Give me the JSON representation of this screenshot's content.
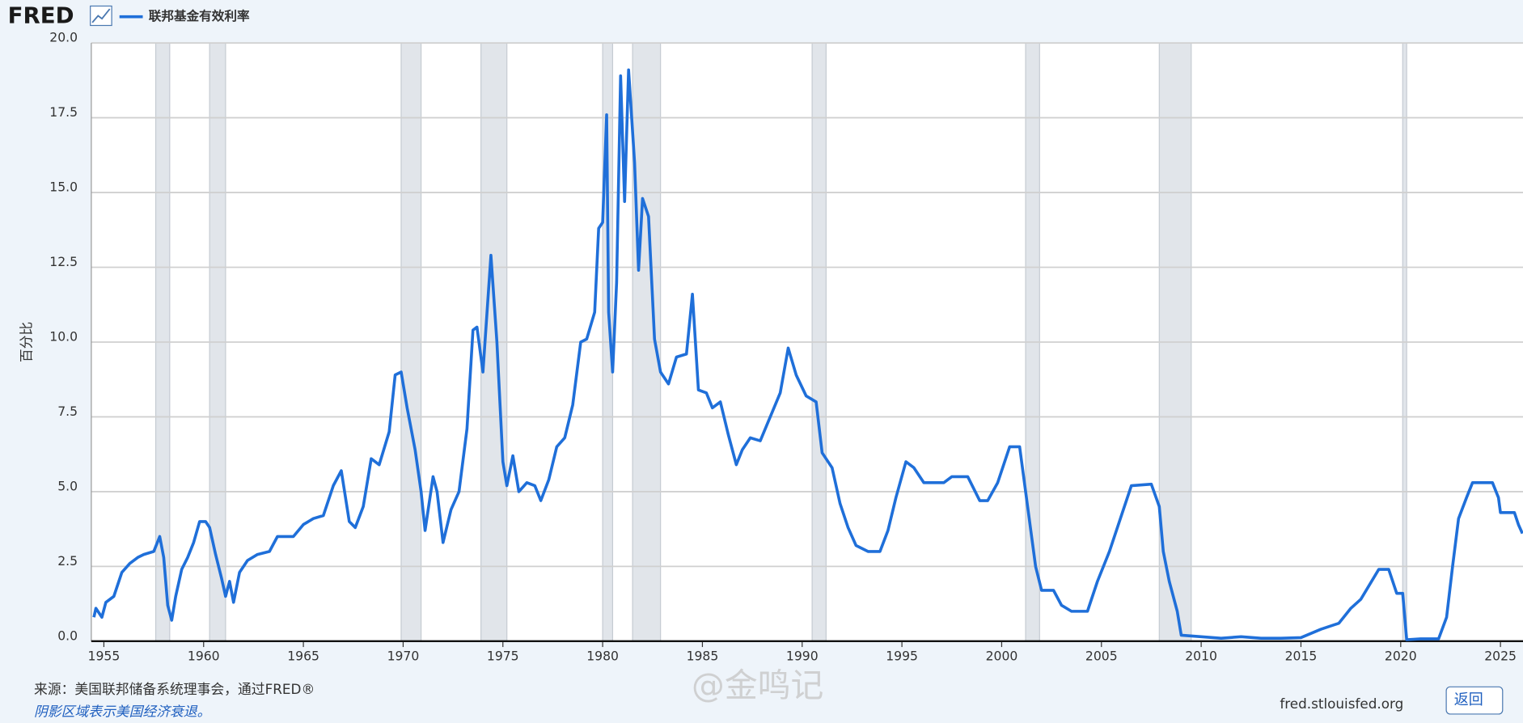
{
  "header": {
    "logo": "FRED",
    "legend": "联邦基金有效利率"
  },
  "chart_data": {
    "type": "line",
    "ylabel": "百分比",
    "x": [
      1954.5,
      1954.6,
      1954.9,
      1955.1,
      1955.5,
      1955.9,
      1956.3,
      1956.7,
      1957.0,
      1957.5,
      1957.8,
      1958.0,
      1958.2,
      1958.4,
      1958.6,
      1958.9,
      1959.2,
      1959.5,
      1959.8,
      1960.1,
      1960.3,
      1960.6,
      1960.9,
      1961.1,
      1961.3,
      1961.5,
      1961.8,
      1962.2,
      1962.7,
      1963.3,
      1963.7,
      1964.5,
      1965.0,
      1965.5,
      1966.0,
      1966.5,
      1966.9,
      1967.3,
      1967.6,
      1968.0,
      1968.4,
      1968.8,
      1969.3,
      1969.6,
      1969.9,
      1970.2,
      1970.6,
      1970.9,
      1971.1,
      1971.5,
      1971.7,
      1972.0,
      1972.4,
      1972.8,
      1973.2,
      1973.5,
      1973.7,
      1974.0,
      1974.4,
      1974.7,
      1975.0,
      1975.2,
      1975.5,
      1975.8,
      1976.2,
      1976.6,
      1976.9,
      1977.3,
      1977.7,
      1978.1,
      1978.5,
      1978.9,
      1979.2,
      1979.6,
      1979.8,
      1980.0,
      1980.2,
      1980.3,
      1980.5,
      1980.7,
      1980.9,
      1981.1,
      1981.3,
      1981.6,
      1981.8,
      1982.0,
      1982.3,
      1982.6,
      1982.9,
      1983.3,
      1983.7,
      1984.2,
      1984.5,
      1984.8,
      1985.2,
      1985.5,
      1985.9,
      1986.3,
      1986.7,
      1987.0,
      1987.4,
      1987.9,
      1988.4,
      1988.9,
      1989.3,
      1989.7,
      1990.2,
      1990.7,
      1991.0,
      1991.5,
      1991.9,
      1992.3,
      1992.7,
      1993.3,
      1993.9,
      1994.3,
      1994.7,
      1995.2,
      1995.6,
      1996.1,
      1996.6,
      1997.1,
      1997.5,
      1998.3,
      1998.9,
      1999.3,
      1999.8,
      2000.4,
      2000.9,
      2001.3,
      2001.7,
      2002.0,
      2002.6,
      2003.0,
      2003.5,
      2004.3,
      2004.8,
      2005.4,
      2005.9,
      2006.5,
      2007.5,
      2007.9,
      2008.1,
      2008.4,
      2008.8,
      2009.0,
      2010.0,
      2011.0,
      2012.0,
      2013.0,
      2014.0,
      2015.0,
      2016.0,
      2016.9,
      2017.5,
      2018.0,
      2018.9,
      2019.4,
      2019.8,
      2020.1,
      2020.3,
      2021.0,
      2021.9,
      2022.3,
      2022.6,
      2022.9,
      2023.3,
      2023.6,
      2024.6,
      2024.9,
      2025.0,
      2025.7,
      2025.9,
      2026.1
    ],
    "series": [
      {
        "name": "联邦基金有效利率",
        "color": "#1f6fd9",
        "values": [
          0.8,
          1.1,
          0.8,
          1.3,
          1.5,
          2.3,
          2.6,
          2.8,
          2.9,
          3.0,
          3.5,
          2.8,
          1.2,
          0.7,
          1.5,
          2.4,
          2.8,
          3.3,
          4.0,
          4.0,
          3.8,
          2.9,
          2.1,
          1.5,
          2.0,
          1.3,
          2.3,
          2.7,
          2.9,
          3.0,
          3.5,
          3.5,
          3.9,
          4.1,
          4.2,
          5.2,
          5.7,
          4.0,
          3.8,
          4.5,
          6.1,
          5.9,
          7.0,
          8.9,
          9.0,
          7.8,
          6.4,
          5.0,
          3.7,
          5.5,
          5.0,
          3.3,
          4.4,
          5.0,
          7.1,
          10.4,
          10.5,
          9.0,
          12.9,
          10.0,
          6.0,
          5.2,
          6.2,
          5.0,
          5.3,
          5.2,
          4.7,
          5.4,
          6.5,
          6.8,
          7.9,
          10.0,
          10.1,
          11.0,
          13.8,
          14.0,
          17.6,
          11.0,
          9.0,
          12.0,
          18.9,
          14.7,
          19.1,
          16.0,
          12.4,
          14.8,
          14.2,
          10.1,
          9.0,
          8.6,
          9.5,
          9.6,
          11.6,
          8.4,
          8.3,
          7.8,
          8.0,
          6.9,
          5.9,
          6.4,
          6.8,
          6.7,
          7.5,
          8.3,
          9.8,
          8.9,
          8.2,
          8.0,
          6.3,
          5.8,
          4.6,
          3.8,
          3.2,
          3.0,
          3.0,
          3.7,
          4.8,
          6.0,
          5.8,
          5.3,
          5.3,
          5.3,
          5.5,
          5.5,
          4.7,
          4.7,
          5.3,
          6.5,
          6.5,
          4.5,
          2.5,
          1.7,
          1.7,
          1.2,
          1.0,
          1.0,
          2.0,
          3.0,
          4.0,
          5.2,
          5.25,
          4.5,
          3.0,
          2.0,
          1.0,
          0.2,
          0.15,
          0.1,
          0.15,
          0.1,
          0.1,
          0.12,
          0.4,
          0.6,
          1.1,
          1.4,
          2.4,
          2.4,
          1.6,
          1.6,
          0.05,
          0.08,
          0.08,
          0.8,
          2.5,
          4.1,
          4.8,
          5.3,
          5.3,
          4.8,
          4.3,
          4.3,
          3.9,
          3.6
        ]
      }
    ],
    "recessions": [
      [
        1957.6,
        1958.3
      ],
      [
        1960.3,
        1961.1
      ],
      [
        1969.9,
        1970.9
      ],
      [
        1973.9,
        1975.2
      ],
      [
        1980.0,
        1980.5
      ],
      [
        1981.5,
        1982.9
      ],
      [
        1990.5,
        1991.2
      ],
      [
        2001.2,
        2001.9
      ],
      [
        2007.9,
        2009.5
      ],
      [
        2020.1,
        2020.3
      ]
    ],
    "xlim": [
      1954.37,
      2026.13
    ],
    "xticks": [
      1955,
      1960,
      1965,
      1970,
      1975,
      1980,
      1985,
      1990,
      1995,
      2000,
      2005,
      2010,
      2015,
      2020,
      2025
    ],
    "ylim": [
      0,
      20
    ],
    "yticks": [
      {
        "value": 0,
        "label": "0.0"
      },
      {
        "value": 2.5,
        "label": "2.5"
      },
      {
        "value": 5,
        "label": "5.0"
      },
      {
        "value": 7.5,
        "label": "7.5"
      },
      {
        "value": 10,
        "label": "10.0"
      },
      {
        "value": 12.5,
        "label": "12.5"
      },
      {
        "value": 15,
        "label": "15.0"
      },
      {
        "value": 17.5,
        "label": "17.5"
      },
      {
        "value": 20,
        "label": "20.0"
      }
    ],
    "grid": true,
    "recession_color": "#e1e5ea"
  },
  "footer": {
    "source": "来源：美国联邦储备系统理事会，通过FRED®",
    "note": "阴影区域表示美国经济衰退。",
    "site": "fred.stlouisfed.org",
    "button": "返回",
    "watermark": "@金鸣记"
  }
}
